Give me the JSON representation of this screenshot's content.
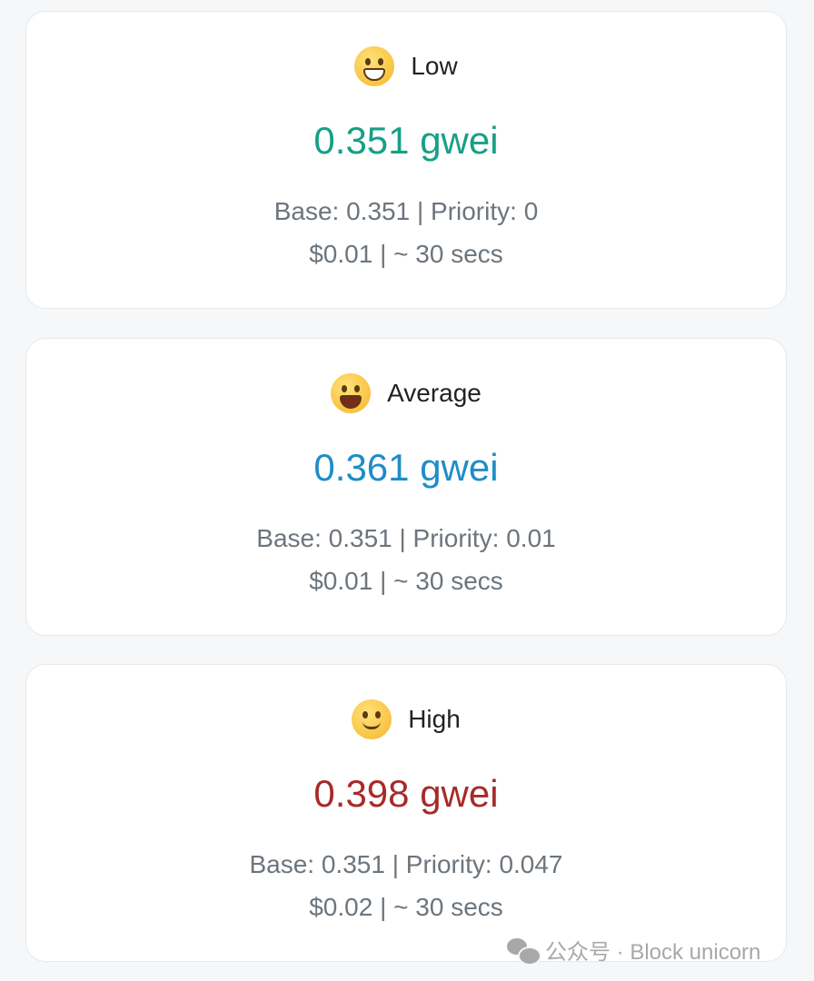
{
  "cards": [
    {
      "name": "Low",
      "emoji": "grinning-squinting-face",
      "value": "0.351 gwei",
      "color": "#16a085",
      "details": "Base: 0.351 | Priority: 0",
      "cost": "$0.01 | ~ 30 secs"
    },
    {
      "name": "Average",
      "emoji": "grinning-face",
      "value": "0.361 gwei",
      "color": "#1e8dc8",
      "details": "Base: 0.351 | Priority: 0.01",
      "cost": "$0.01 | ~ 30 secs"
    },
    {
      "name": "High",
      "emoji": "slightly-smiling-face",
      "value": "0.398 gwei",
      "color": "#a82a2a",
      "details": "Base: 0.351 | Priority: 0.047",
      "cost": "$0.02 | ~ 30 secs"
    }
  ],
  "watermark": {
    "icon": "wechat-icon",
    "text": "公众号 · Block unicorn"
  }
}
